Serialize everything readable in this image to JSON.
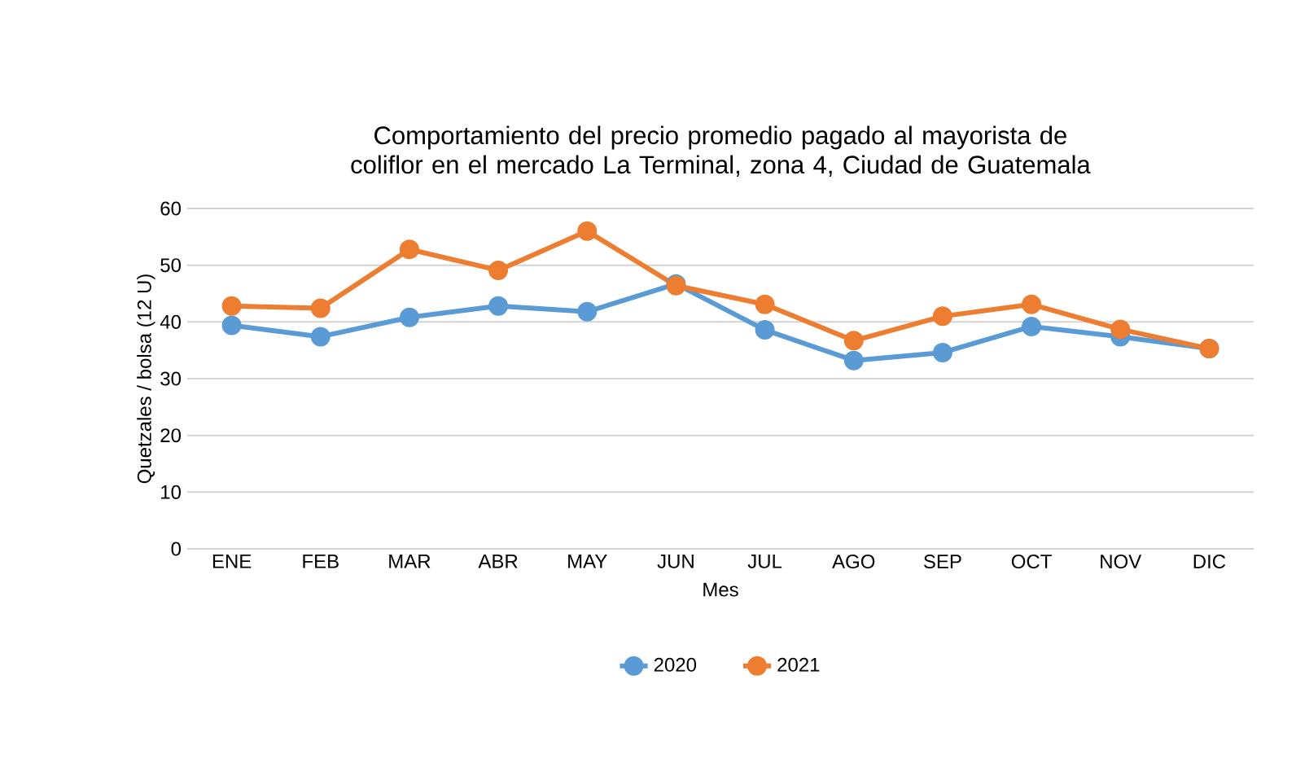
{
  "chart_data": {
    "type": "line",
    "title": "Comportamiento del precio promedio pagado al mayorista de coliflor en el mercado La Terminal, zona 4, Ciudad de Guatemala",
    "xlabel": "Mes",
    "ylabel": "Quetzales / bolsa (12 U)",
    "categories": [
      "ENE",
      "FEB",
      "MAR",
      "ABR",
      "MAY",
      "JUN",
      "JUL",
      "AGO",
      "SEP",
      "OCT",
      "NOV",
      "DIC"
    ],
    "series": [
      {
        "name": "2020",
        "color": "#5b9bd5",
        "values": [
          39.4,
          37.4,
          40.8,
          42.8,
          41.8,
          46.7,
          38.6,
          33.2,
          34.6,
          39.2,
          37.4,
          35.3
        ]
      },
      {
        "name": "2021",
        "color": "#ed7d31",
        "values": [
          42.8,
          42.4,
          52.8,
          49.1,
          56.0,
          46.4,
          43.1,
          36.7,
          41.0,
          43.1,
          38.7,
          35.3
        ]
      }
    ],
    "ylim": [
      0,
      60
    ],
    "yticks": [
      0,
      10,
      20,
      30,
      40,
      50,
      60
    ],
    "grid": "y",
    "legend": "bottom",
    "marker": "circle",
    "line_style": "solid"
  }
}
